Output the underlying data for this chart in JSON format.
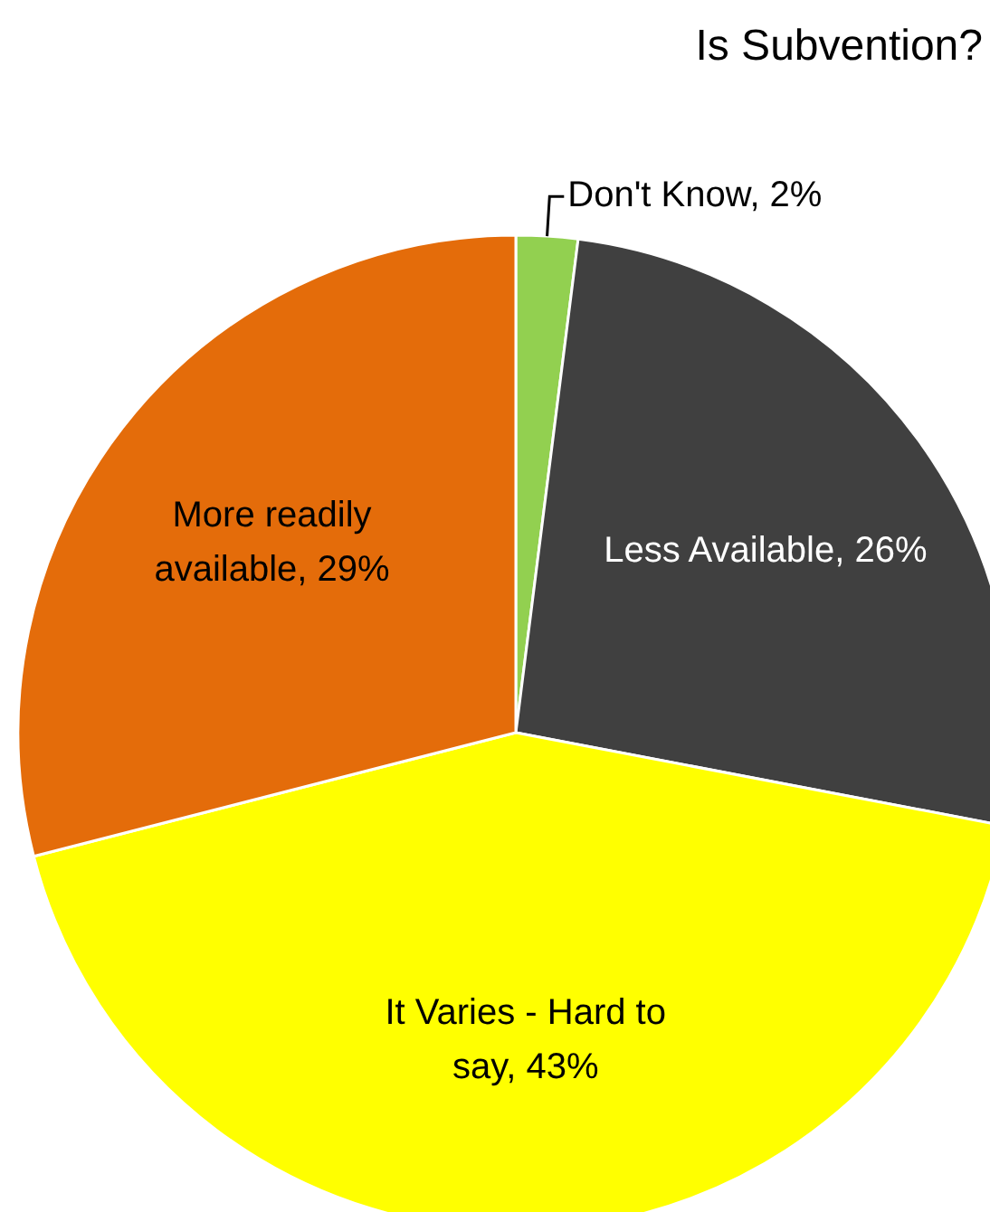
{
  "chart_data": {
    "type": "pie",
    "title": "Is Subvention?",
    "categories": [
      "Don't Know",
      "Less Available",
      "It Varies - Hard to say",
      "More readily available"
    ],
    "values": [
      2,
      26,
      43,
      29
    ],
    "value_labels": [
      "2%",
      "26%",
      "43%",
      "29%"
    ],
    "colors": [
      "#92d050",
      "#404040",
      "#ffff00",
      "#e46c0a"
    ],
    "data_labels": true,
    "legend": false
  }
}
